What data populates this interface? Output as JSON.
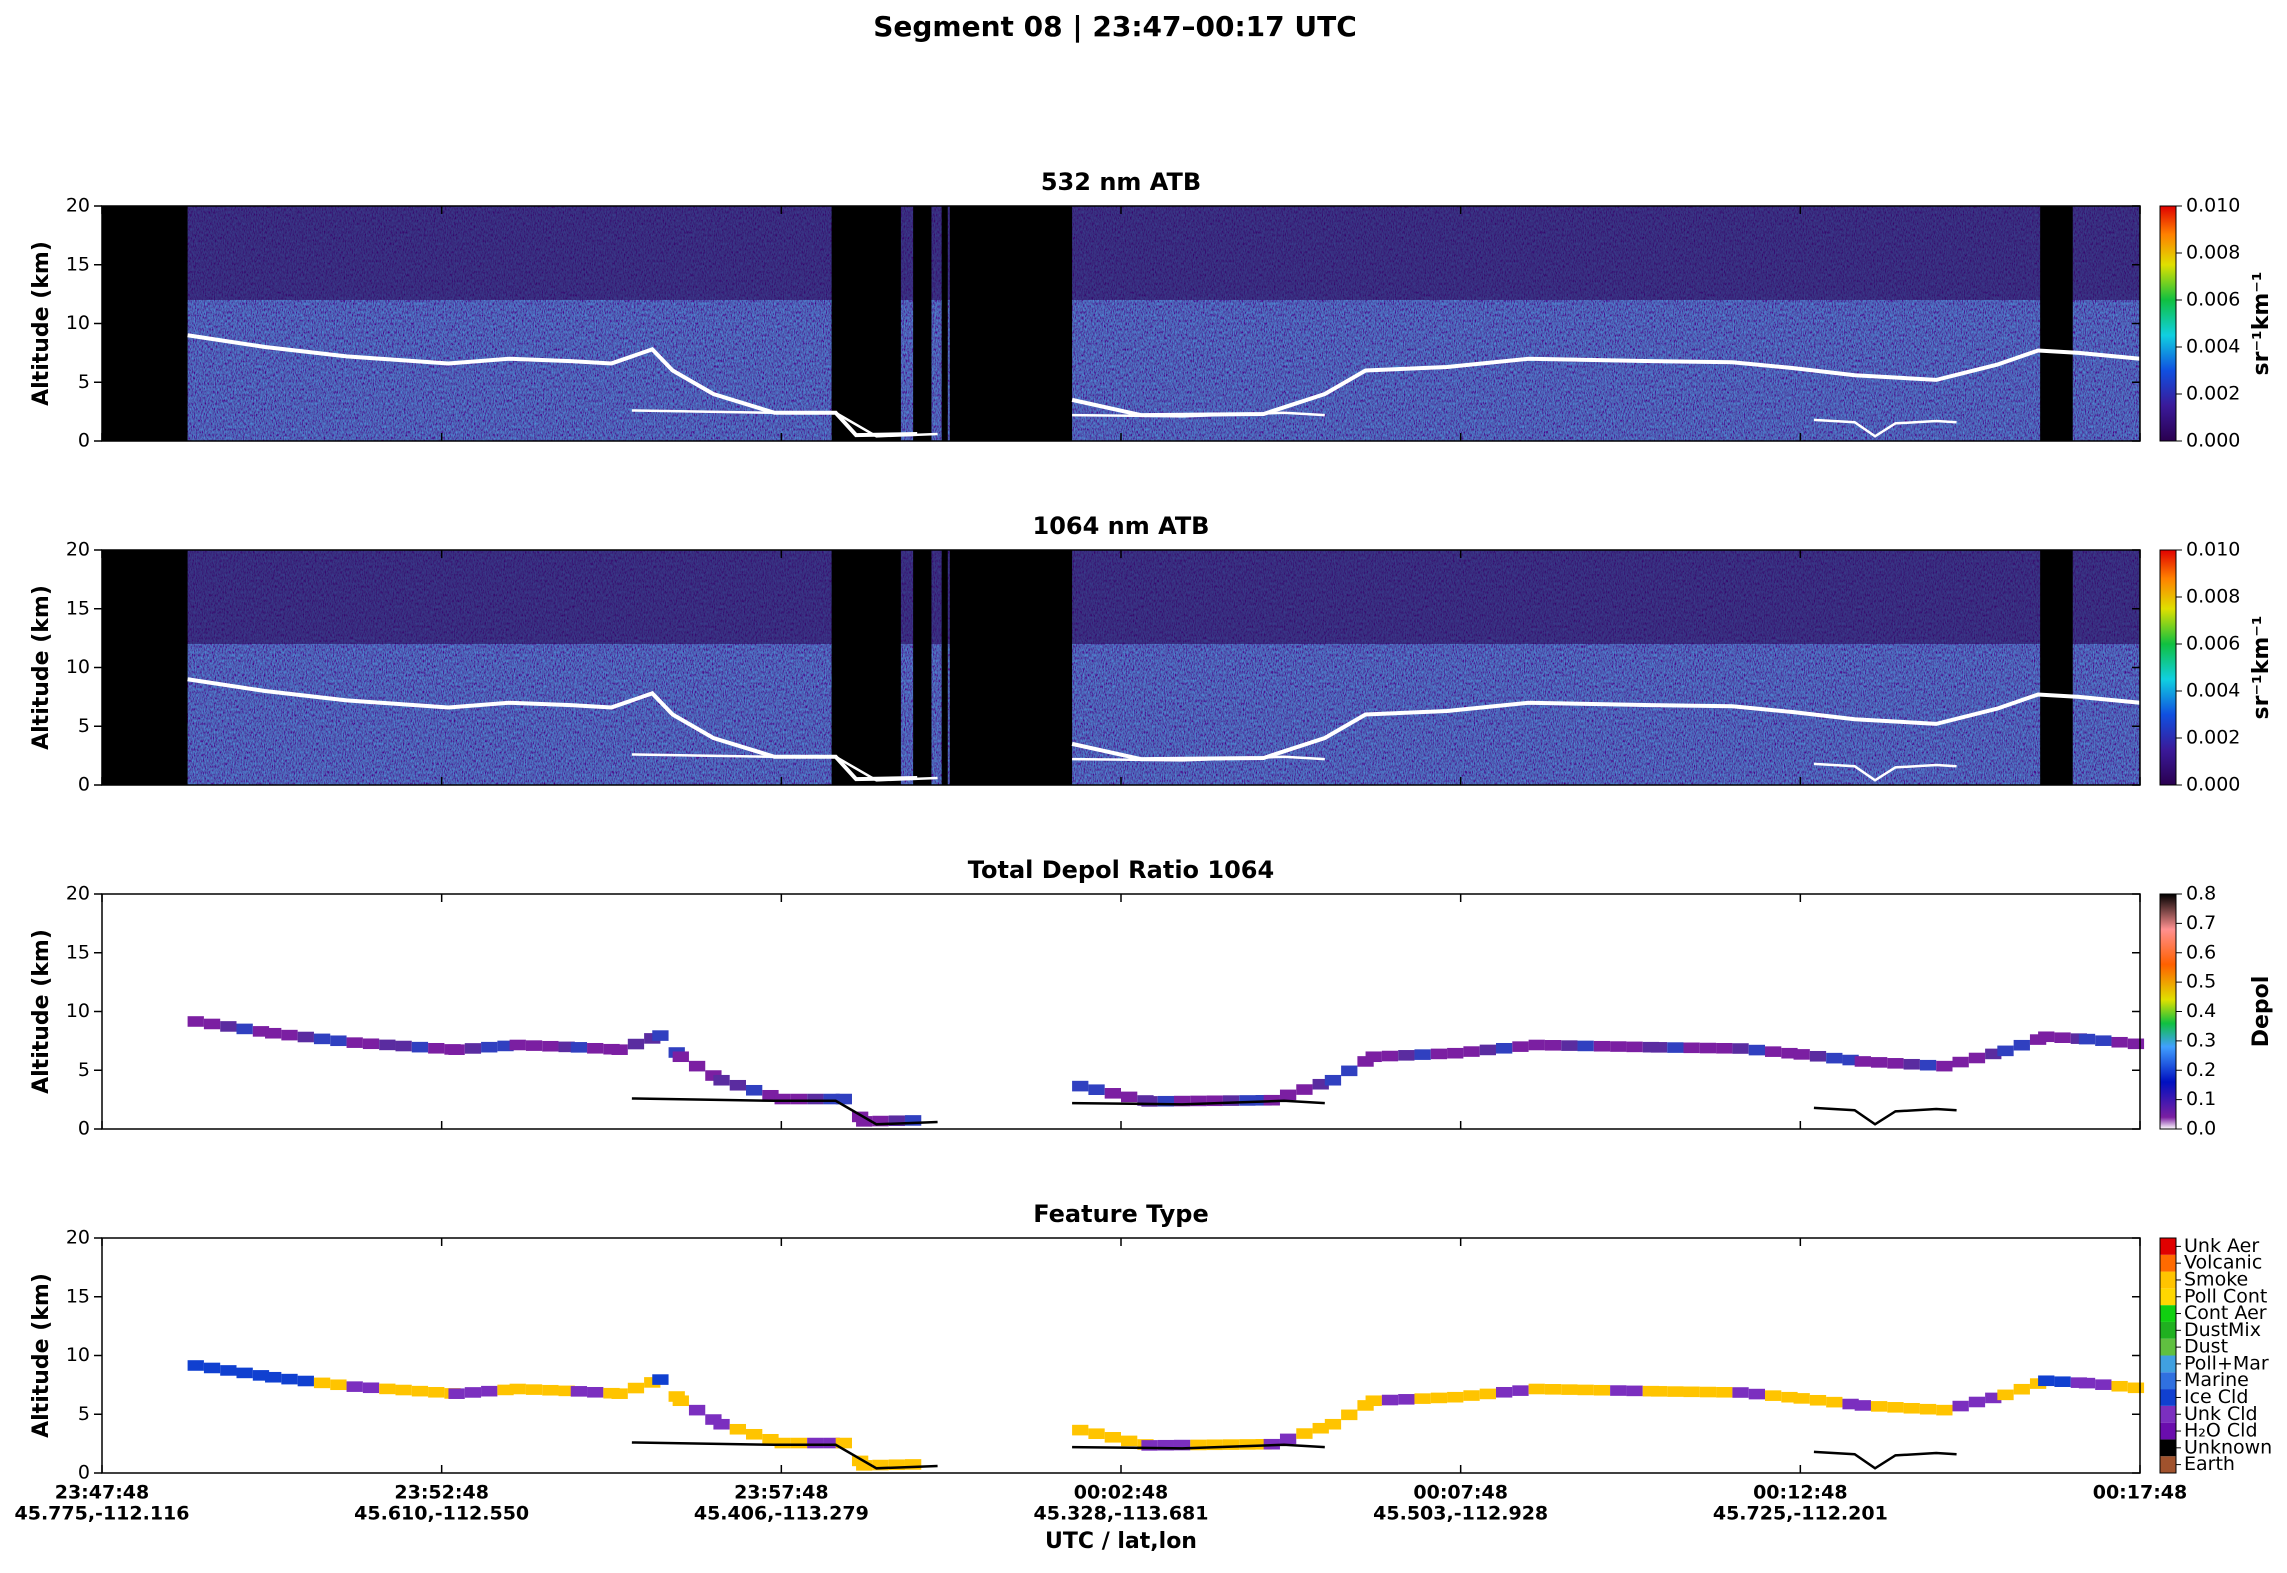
{
  "title": "Segment 08  |  23:47–00:17 UTC",
  "x_axis": {
    "label": "UTC / lat,lon",
    "ticks": [
      {
        "time": "23:47:48",
        "position": "45.775,-112.116"
      },
      {
        "time": "23:52:48",
        "position": "45.610,-112.550"
      },
      {
        "time": "23:57:48",
        "position": "45.406,-113.279"
      },
      {
        "time": "00:02:48",
        "position": "45.328,-113.681"
      },
      {
        "time": "00:07:48",
        "position": "45.503,-112.928"
      },
      {
        "time": "00:12:48",
        "position": "45.725,-112.201"
      },
      {
        "time": "00:17:48",
        "position": "--"
      }
    ]
  },
  "chart_data": [
    {
      "type": "curtain",
      "title": "532 nm ATB",
      "y_label": "Altitude (km)",
      "ylim": [
        0,
        20
      ],
      "yticks": [
        0,
        5,
        10,
        15,
        20
      ],
      "colorbar": {
        "label": "sr⁻¹km⁻¹",
        "lim": [
          0,
          0.01
        ],
        "ticks": [
          {
            "value": 0,
            "label": "0.000"
          },
          {
            "value": 0.002,
            "label": "0.002"
          },
          {
            "value": 0.004,
            "label": "0.004"
          },
          {
            "value": 0.006,
            "label": "0.006"
          },
          {
            "value": 0.008,
            "label": "0.008"
          },
          {
            "value": 0.01,
            "label": "0.010"
          }
        ]
      }
    },
    {
      "type": "curtain",
      "title": "1064 nm ATB",
      "y_label": "Altitude (km)",
      "ylim": [
        0,
        20
      ],
      "yticks": [
        0,
        5,
        10,
        15,
        20
      ],
      "colorbar": {
        "label": "sr⁻¹km⁻¹",
        "lim": [
          0,
          0.01
        ],
        "ticks": [
          {
            "value": 0,
            "label": "0.000"
          },
          {
            "value": 0.002,
            "label": "0.002"
          },
          {
            "value": 0.004,
            "label": "0.004"
          },
          {
            "value": 0.006,
            "label": "0.006"
          },
          {
            "value": 0.008,
            "label": "0.008"
          },
          {
            "value": 0.01,
            "label": "0.010"
          }
        ]
      }
    },
    {
      "type": "depol",
      "title": "Total Depol Ratio 1064",
      "y_label": "Altitude (km)",
      "ylim": [
        0,
        20
      ],
      "yticks": [
        0,
        5,
        10,
        15,
        20
      ],
      "colorbar": {
        "label": "Depol",
        "lim": [
          0,
          0.8
        ],
        "ticks": [
          {
            "value": 0,
            "label": "0.0"
          },
          0.1,
          0.2,
          0.3,
          0.4,
          0.5,
          0.6,
          0.7,
          0.8
        ]
      }
    },
    {
      "type": "feature",
      "title": "Feature Type",
      "y_label": "Altitude (km)",
      "ylim": [
        0,
        20
      ],
      "yticks": [
        0,
        5,
        10,
        15,
        20
      ],
      "colorbar": {
        "categories": [
          "Earth",
          "Unknown",
          "H₂O Cld",
          "Unk Cld",
          "Ice Cld",
          "Marine",
          "Poll+Mar",
          "Dust",
          "DustMix",
          "Cont Aer",
          "Poll Cont",
          "Smoke",
          "Volcanic",
          "Unk Aer"
        ],
        "colors": [
          "#a0522d",
          "#000000",
          "#6a0dad",
          "#7b2fbf",
          "#1040d0",
          "#3070e0",
          "#40a0e0",
          "#60c040",
          "#20b020",
          "#10d010",
          "#ffd700",
          "#ffc400",
          "#ff6a00",
          "#e00000"
        ]
      }
    }
  ]
}
